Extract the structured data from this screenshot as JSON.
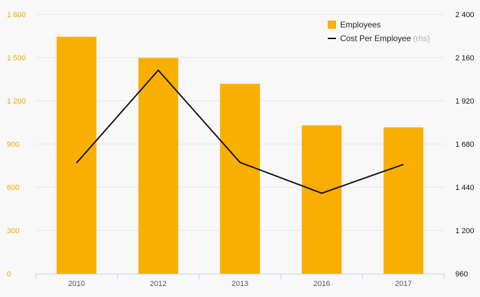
{
  "chart_data": {
    "type": "bar",
    "categories": [
      "2010",
      "2012",
      "2013",
      "2016",
      "2017"
    ],
    "series": [
      {
        "name": "Employees",
        "type": "bar",
        "axis": "left",
        "values": [
          1645,
          1498,
          1318,
          1030,
          1016
        ]
      },
      {
        "name": "Cost Per Employee",
        "type": "line",
        "axis": "right",
        "values": [
          1575,
          2090,
          1578,
          1407,
          1567
        ]
      }
    ],
    "legend_note": "(rhs)",
    "y_left": {
      "ylim": [
        0,
        1800
      ],
      "ticks": [
        0,
        300,
        600,
        900,
        1200,
        1500,
        1800
      ],
      "tick_labels": [
        "0",
        "300",
        "600",
        "900",
        "1 200",
        "1 500",
        "1 800"
      ]
    },
    "y_right": {
      "ylim": [
        960,
        2400
      ],
      "ticks": [
        960,
        1200,
        1440,
        1680,
        1920,
        2160,
        2400
      ],
      "tick_labels": [
        "960",
        "1 200",
        "1 440",
        "1 680",
        "1 920",
        "2 160",
        "2 400"
      ]
    },
    "grid": true,
    "legend_position": "top-right",
    "colors": {
      "bar": "#f9af00",
      "line": "#111111",
      "left_axis_text": "#f2a900",
      "right_axis_text": "#111111",
      "x_axis_text": "#555555",
      "grid": "#e6e6e6",
      "axis_line": "#c8d2e2",
      "background": "#f8f8f8"
    }
  }
}
